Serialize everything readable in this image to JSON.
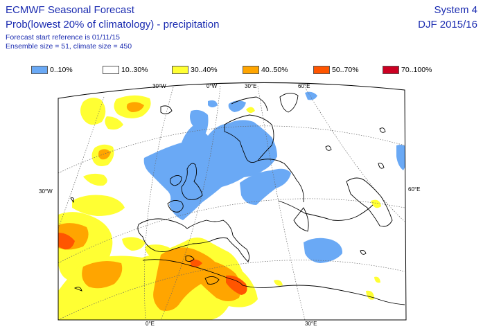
{
  "header": {
    "title": "ECMWF Seasonal Forecast",
    "subtitle": "Prob(lowest 20% of climatology) - precipitation",
    "forecast_start": "Forecast start reference is 01/11/15",
    "ensemble": "Ensemble size = 51, climate size = 450",
    "system": "System 4",
    "season": "DJF 2015/16"
  },
  "legend": [
    {
      "label": "0..10%",
      "color": "#6aa9f5"
    },
    {
      "label": "10..30%",
      "color": "#ffffff"
    },
    {
      "label": "30..40%",
      "color": "#ffff33"
    },
    {
      "label": "40..50%",
      "color": "#ffa500"
    },
    {
      "label": "50..70%",
      "color": "#ff5500"
    },
    {
      "label": "70..100%",
      "color": "#cc0022"
    }
  ],
  "map": {
    "top_labels": [
      "30°W",
      "0°W",
      "30°E",
      "60°E"
    ],
    "left_labels": [
      "30°W"
    ],
    "right_labels": [
      "60°E"
    ],
    "bottom_labels": [
      "0°E",
      "30°E"
    ]
  }
}
